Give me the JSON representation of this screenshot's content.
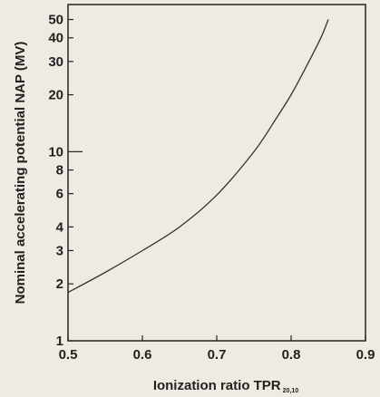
{
  "chart_data": {
    "type": "line",
    "xlabel": "Ionization ratio TPR",
    "xlabel_subscript": "20,10",
    "ylabel": "Nominal accelerating potential NAP  (MV)",
    "xlim": [
      0.5,
      0.9
    ],
    "ylim": [
      1,
      60
    ],
    "y_scale": "log",
    "grid": false,
    "x_ticks": [
      {
        "value": 0.5,
        "label": "0.5"
      },
      {
        "value": 0.6,
        "label": "0.6"
      },
      {
        "value": 0.7,
        "label": "0.7"
      },
      {
        "value": 0.8,
        "label": "0.8"
      },
      {
        "value": 0.9,
        "label": "0.9"
      }
    ],
    "y_ticks": [
      {
        "value": 1,
        "label": "1"
      },
      {
        "value": 2,
        "label": "2"
      },
      {
        "value": 3,
        "label": "3"
      },
      {
        "value": 4,
        "label": "4"
      },
      {
        "value": 6,
        "label": "6"
      },
      {
        "value": 8,
        "label": "8"
      },
      {
        "value": 10,
        "label": "10"
      },
      {
        "value": 20,
        "label": "20"
      },
      {
        "value": 30,
        "label": "30"
      },
      {
        "value": 40,
        "label": "40"
      },
      {
        "value": 50,
        "label": "50"
      }
    ],
    "series": [
      {
        "x": [
          0.5,
          0.55,
          0.6,
          0.65,
          0.7,
          0.75,
          0.78,
          0.8,
          0.82,
          0.84,
          0.85
        ],
        "y": [
          1.8,
          2.3,
          3.0,
          4.0,
          5.9,
          10.0,
          15.0,
          20.0,
          28.0,
          40.0,
          50.0
        ]
      }
    ],
    "colors": {
      "background": "#f0ebe2",
      "line": "#333333",
      "axis": "#222222"
    }
  }
}
